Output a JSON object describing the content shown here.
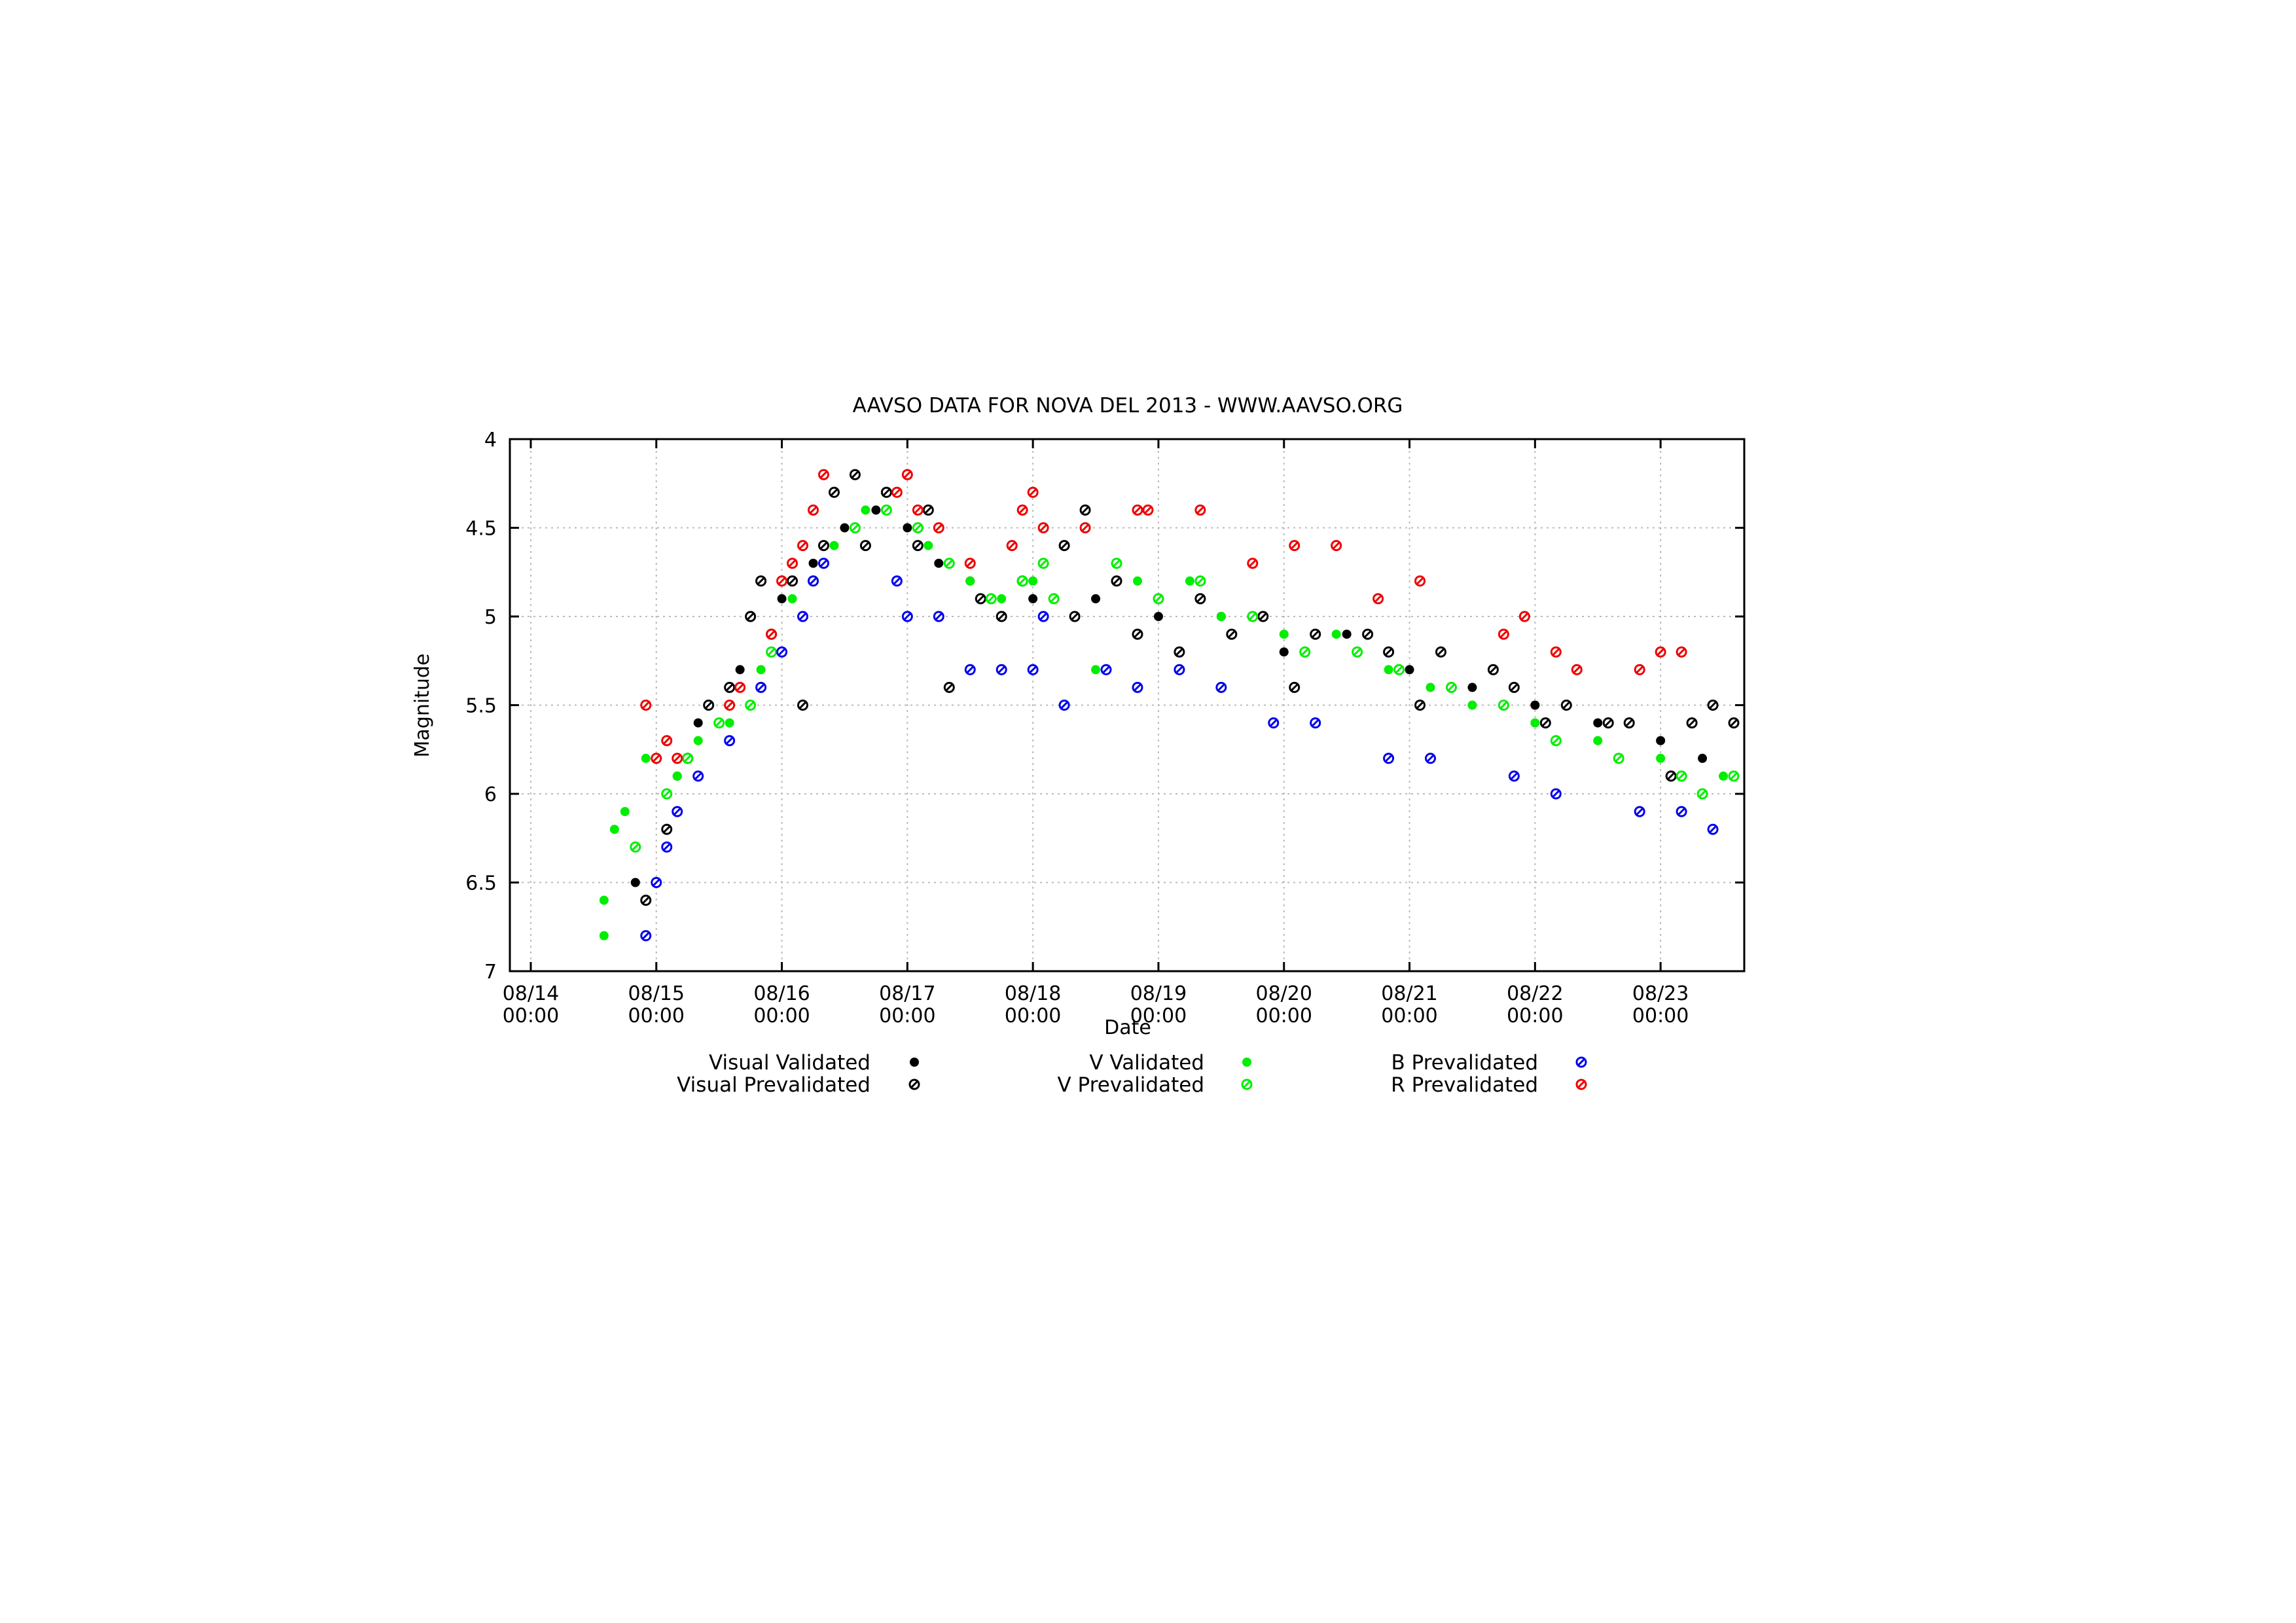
{
  "chart_data": {
    "type": "scatter",
    "title": "AAVSO DATA FOR NOVA DEL 2013 - WWW.AAVSO.ORG",
    "xlabel": "Date",
    "ylabel": "Magnitude",
    "ylim": [
      7,
      4
    ],
    "y_inverted": true,
    "y_ticks": [
      "4",
      "4.5",
      "5",
      "5.5",
      "6",
      "6.5",
      "7"
    ],
    "xlim": [
      "2013-08-13 20:00",
      "2013-08-23 16:00"
    ],
    "x_ticks": [
      {
        "date": "2013-08-14 00:00",
        "line1": "08/14",
        "line2": "00:00"
      },
      {
        "date": "2013-08-15 00:00",
        "line1": "08/15",
        "line2": "00:00"
      },
      {
        "date": "2013-08-16 00:00",
        "line1": "08/16",
        "line2": "00:00"
      },
      {
        "date": "2013-08-17 00:00",
        "line1": "08/17",
        "line2": "00:00"
      },
      {
        "date": "2013-08-18 00:00",
        "line1": "08/18",
        "line2": "00:00"
      },
      {
        "date": "2013-08-19 00:00",
        "line1": "08/19",
        "line2": "00:00"
      },
      {
        "date": "2013-08-20 00:00",
        "line1": "08/20",
        "line2": "00:00"
      },
      {
        "date": "2013-08-21 00:00",
        "line1": "08/21",
        "line2": "00:00"
      },
      {
        "date": "2013-08-22 00:00",
        "line1": "08/22",
        "line2": "00:00"
      },
      {
        "date": "2013-08-23 00:00",
        "line1": "08/23",
        "line2": "00:00"
      }
    ],
    "grid": true,
    "legend_position": "bottom",
    "series": [
      {
        "name": "Visual Validated",
        "color": "#000000",
        "marker": "filled",
        "points": [
          [
            "2013-08-14 20:00",
            6.5
          ],
          [
            "2013-08-15 04:00",
            5.9
          ],
          [
            "2013-08-15 08:00",
            5.6
          ],
          [
            "2013-08-15 16:00",
            5.3
          ],
          [
            "2013-08-16 00:00",
            4.9
          ],
          [
            "2013-08-16 06:00",
            4.7
          ],
          [
            "2013-08-16 12:00",
            4.5
          ],
          [
            "2013-08-16 18:00",
            4.4
          ],
          [
            "2013-08-17 00:00",
            4.5
          ],
          [
            "2013-08-17 06:00",
            4.7
          ],
          [
            "2013-08-17 12:00",
            4.8
          ],
          [
            "2013-08-18 00:00",
            4.9
          ],
          [
            "2013-08-18 12:00",
            4.9
          ],
          [
            "2013-08-19 00:00",
            5.0
          ],
          [
            "2013-08-19 12:00",
            5.0
          ],
          [
            "2013-08-20 00:00",
            5.2
          ],
          [
            "2013-08-20 12:00",
            5.1
          ],
          [
            "2013-08-21 00:00",
            5.3
          ],
          [
            "2013-08-21 12:00",
            5.4
          ],
          [
            "2013-08-22 00:00",
            5.5
          ],
          [
            "2013-08-22 12:00",
            5.6
          ],
          [
            "2013-08-23 00:00",
            5.7
          ],
          [
            "2013-08-23 08:00",
            5.8
          ]
        ]
      },
      {
        "name": "Visual Prevalidated",
        "color": "#000000",
        "marker": "hatched",
        "points": [
          [
            "2013-08-14 22:00",
            6.6
          ],
          [
            "2013-08-15 02:00",
            6.2
          ],
          [
            "2013-08-15 06:00",
            5.8
          ],
          [
            "2013-08-15 10:00",
            5.5
          ],
          [
            "2013-08-15 14:00",
            5.4
          ],
          [
            "2013-08-15 18:00",
            5.0
          ],
          [
            "2013-08-15 20:00",
            4.8
          ],
          [
            "2013-08-15 22:00",
            5.1
          ],
          [
            "2013-08-16 02:00",
            4.8
          ],
          [
            "2013-08-16 04:00",
            5.5
          ],
          [
            "2013-08-16 08:00",
            4.6
          ],
          [
            "2013-08-16 10:00",
            4.3
          ],
          [
            "2013-08-16 14:00",
            4.2
          ],
          [
            "2013-08-16 16:00",
            4.6
          ],
          [
            "2013-08-16 20:00",
            4.3
          ],
          [
            "2013-08-17 02:00",
            4.6
          ],
          [
            "2013-08-17 04:00",
            4.4
          ],
          [
            "2013-08-17 08:00",
            5.4
          ],
          [
            "2013-08-17 14:00",
            4.9
          ],
          [
            "2013-08-17 18:00",
            5.0
          ],
          [
            "2013-08-17 22:00",
            4.8
          ],
          [
            "2013-08-18 06:00",
            4.6
          ],
          [
            "2013-08-18 08:00",
            5.0
          ],
          [
            "2013-08-18 10:00",
            4.4
          ],
          [
            "2013-08-18 16:00",
            4.8
          ],
          [
            "2013-08-18 20:00",
            5.1
          ],
          [
            "2013-08-19 04:00",
            5.2
          ],
          [
            "2013-08-19 08:00",
            4.9
          ],
          [
            "2013-08-19 14:00",
            5.1
          ],
          [
            "2013-08-19 20:00",
            5.0
          ],
          [
            "2013-08-20 02:00",
            5.4
          ],
          [
            "2013-08-20 06:00",
            5.1
          ],
          [
            "2013-08-20 16:00",
            5.1
          ],
          [
            "2013-08-20 20:00",
            5.2
          ],
          [
            "2013-08-21 02:00",
            5.5
          ],
          [
            "2013-08-21 06:00",
            5.2
          ],
          [
            "2013-08-21 16:00",
            5.3
          ],
          [
            "2013-08-21 20:00",
            5.4
          ],
          [
            "2013-08-22 02:00",
            5.6
          ],
          [
            "2013-08-22 06:00",
            5.5
          ],
          [
            "2013-08-22 14:00",
            5.6
          ],
          [
            "2013-08-22 18:00",
            5.6
          ],
          [
            "2013-08-23 02:00",
            5.9
          ],
          [
            "2013-08-23 06:00",
            5.6
          ],
          [
            "2013-08-23 10:00",
            5.5
          ],
          [
            "2013-08-23 14:00",
            5.6
          ]
        ]
      },
      {
        "name": "V Validated",
        "color": "#00ee00",
        "marker": "filled",
        "points": [
          [
            "2013-08-14 14:00",
            6.8
          ],
          [
            "2013-08-14 14:00",
            6.6
          ],
          [
            "2013-08-14 16:00",
            6.2
          ],
          [
            "2013-08-14 18:00",
            6.1
          ],
          [
            "2013-08-14 22:00",
            5.8
          ],
          [
            "2013-08-15 04:00",
            5.9
          ],
          [
            "2013-08-15 08:00",
            5.7
          ],
          [
            "2013-08-15 14:00",
            5.6
          ],
          [
            "2013-08-15 20:00",
            5.3
          ],
          [
            "2013-08-16 02:00",
            4.9
          ],
          [
            "2013-08-16 10:00",
            4.6
          ],
          [
            "2013-08-16 16:00",
            4.4
          ],
          [
            "2013-08-17 04:00",
            4.6
          ],
          [
            "2013-08-17 12:00",
            4.8
          ],
          [
            "2013-08-17 18:00",
            4.9
          ],
          [
            "2013-08-18 00:00",
            4.8
          ],
          [
            "2013-08-18 12:00",
            5.3
          ],
          [
            "2013-08-18 20:00",
            4.8
          ],
          [
            "2013-08-19 06:00",
            4.8
          ],
          [
            "2013-08-19 12:00",
            5.0
          ],
          [
            "2013-08-20 00:00",
            5.1
          ],
          [
            "2013-08-20 10:00",
            5.1
          ],
          [
            "2013-08-20 20:00",
            5.3
          ],
          [
            "2013-08-21 04:00",
            5.4
          ],
          [
            "2013-08-21 12:00",
            5.5
          ],
          [
            "2013-08-22 00:00",
            5.6
          ],
          [
            "2013-08-22 12:00",
            5.7
          ],
          [
            "2013-08-23 00:00",
            5.8
          ],
          [
            "2013-08-23 12:00",
            5.9
          ]
        ]
      },
      {
        "name": "V Prevalidated",
        "color": "#00ee00",
        "marker": "hatched",
        "points": [
          [
            "2013-08-14 20:00",
            6.3
          ],
          [
            "2013-08-15 02:00",
            6.0
          ],
          [
            "2013-08-15 06:00",
            5.8
          ],
          [
            "2013-08-15 12:00",
            5.6
          ],
          [
            "2013-08-15 18:00",
            5.5
          ],
          [
            "2013-08-15 22:00",
            5.2
          ],
          [
            "2013-08-16 06:00",
            4.8
          ],
          [
            "2013-08-16 14:00",
            4.5
          ],
          [
            "2013-08-16 20:00",
            4.4
          ],
          [
            "2013-08-17 02:00",
            4.5
          ],
          [
            "2013-08-17 08:00",
            4.7
          ],
          [
            "2013-08-17 16:00",
            4.9
          ],
          [
            "2013-08-17 22:00",
            4.8
          ],
          [
            "2013-08-18 02:00",
            4.7
          ],
          [
            "2013-08-18 04:00",
            4.9
          ],
          [
            "2013-08-18 16:00",
            4.7
          ],
          [
            "2013-08-19 00:00",
            4.9
          ],
          [
            "2013-08-19 08:00",
            4.8
          ],
          [
            "2013-08-19 18:00",
            5.0
          ],
          [
            "2013-08-20 04:00",
            5.2
          ],
          [
            "2013-08-20 14:00",
            5.2
          ],
          [
            "2013-08-20 22:00",
            5.3
          ],
          [
            "2013-08-21 08:00",
            5.4
          ],
          [
            "2013-08-21 18:00",
            5.5
          ],
          [
            "2013-08-22 04:00",
            5.7
          ],
          [
            "2013-08-22 16:00",
            5.8
          ],
          [
            "2013-08-23 04:00",
            5.9
          ],
          [
            "2013-08-23 08:00",
            6.0
          ],
          [
            "2013-08-23 14:00",
            5.9
          ]
        ]
      },
      {
        "name": "B Prevalidated",
        "color": "#0000ee",
        "marker": "hatched",
        "points": [
          [
            "2013-08-14 22:00",
            6.8
          ],
          [
            "2013-08-15 00:00",
            6.5
          ],
          [
            "2013-08-15 02:00",
            6.3
          ],
          [
            "2013-08-15 04:00",
            6.1
          ],
          [
            "2013-08-15 08:00",
            5.9
          ],
          [
            "2013-08-15 14:00",
            5.7
          ],
          [
            "2013-08-15 20:00",
            5.4
          ],
          [
            "2013-08-16 00:00",
            5.2
          ],
          [
            "2013-08-16 04:00",
            5.0
          ],
          [
            "2013-08-16 06:00",
            4.8
          ],
          [
            "2013-08-16 08:00",
            4.7
          ],
          [
            "2013-08-16 22:00",
            4.8
          ],
          [
            "2013-08-17 00:00",
            5.0
          ],
          [
            "2013-08-17 06:00",
            5.0
          ],
          [
            "2013-08-17 12:00",
            5.3
          ],
          [
            "2013-08-17 18:00",
            5.3
          ],
          [
            "2013-08-18 00:00",
            5.3
          ],
          [
            "2013-08-18 02:00",
            5.0
          ],
          [
            "2013-08-18 06:00",
            5.5
          ],
          [
            "2013-08-18 14:00",
            5.3
          ],
          [
            "2013-08-18 20:00",
            5.4
          ],
          [
            "2013-08-19 04:00",
            5.3
          ],
          [
            "2013-08-19 12:00",
            5.4
          ],
          [
            "2013-08-19 22:00",
            5.6
          ],
          [
            "2013-08-20 06:00",
            5.6
          ],
          [
            "2013-08-20 20:00",
            5.8
          ],
          [
            "2013-08-21 04:00",
            5.8
          ],
          [
            "2013-08-21 20:00",
            5.9
          ],
          [
            "2013-08-22 04:00",
            6.0
          ],
          [
            "2013-08-22 20:00",
            6.1
          ],
          [
            "2013-08-23 04:00",
            6.1
          ],
          [
            "2013-08-23 10:00",
            6.2
          ]
        ]
      },
      {
        "name": "R Prevalidated",
        "color": "#ee0000",
        "marker": "hatched",
        "points": [
          [
            "2013-08-14 22:00",
            5.5
          ],
          [
            "2013-08-15 00:00",
            5.8
          ],
          [
            "2013-08-15 02:00",
            5.7
          ],
          [
            "2013-08-15 04:00",
            5.8
          ],
          [
            "2013-08-15 14:00",
            5.5
          ],
          [
            "2013-08-15 16:00",
            5.4
          ],
          [
            "2013-08-15 22:00",
            5.1
          ],
          [
            "2013-08-16 00:00",
            4.8
          ],
          [
            "2013-08-16 02:00",
            4.7
          ],
          [
            "2013-08-16 04:00",
            4.6
          ],
          [
            "2013-08-16 06:00",
            4.4
          ],
          [
            "2013-08-16 08:00",
            4.2
          ],
          [
            "2013-08-16 22:00",
            4.3
          ],
          [
            "2013-08-17 00:00",
            4.2
          ],
          [
            "2013-08-17 02:00",
            4.4
          ],
          [
            "2013-08-17 06:00",
            4.5
          ],
          [
            "2013-08-17 12:00",
            4.7
          ],
          [
            "2013-08-17 20:00",
            4.6
          ],
          [
            "2013-08-17 22:00",
            4.4
          ],
          [
            "2013-08-18 00:00",
            4.3
          ],
          [
            "2013-08-18 02:00",
            4.5
          ],
          [
            "2013-08-18 10:00",
            4.5
          ],
          [
            "2013-08-18 20:00",
            4.4
          ],
          [
            "2013-08-18 22:00",
            4.4
          ],
          [
            "2013-08-19 08:00",
            4.4
          ],
          [
            "2013-08-19 18:00",
            4.7
          ],
          [
            "2013-08-20 02:00",
            4.6
          ],
          [
            "2013-08-20 10:00",
            4.6
          ],
          [
            "2013-08-20 18:00",
            4.9
          ],
          [
            "2013-08-21 02:00",
            4.8
          ],
          [
            "2013-08-21 18:00",
            5.1
          ],
          [
            "2013-08-21 22:00",
            5.0
          ],
          [
            "2013-08-22 04:00",
            5.2
          ],
          [
            "2013-08-22 08:00",
            5.3
          ],
          [
            "2013-08-22 20:00",
            5.3
          ],
          [
            "2013-08-23 00:00",
            5.2
          ],
          [
            "2013-08-23 04:00",
            5.2
          ]
        ]
      }
    ]
  }
}
